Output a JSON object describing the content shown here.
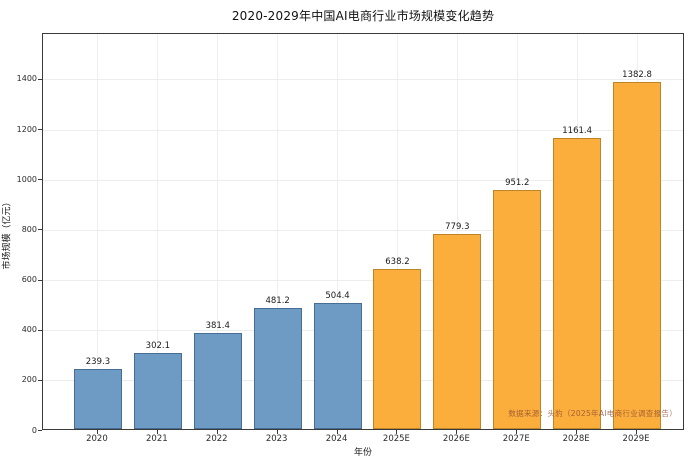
{
  "chart_data": {
    "type": "bar",
    "title": "2020-2029年中国AI电商行业市场规模变化趋势",
    "xlabel": "年份",
    "ylabel": "市场规模（亿元）",
    "categories": [
      "2020",
      "2021",
      "2022",
      "2023",
      "2024",
      "2025E",
      "2026E",
      "2027E",
      "2028E",
      "2029E"
    ],
    "values": [
      239.3,
      302.1,
      381.4,
      481.2,
      504.4,
      638.2,
      779.3,
      951.2,
      1161.4,
      1382.8
    ],
    "yticks": [
      0,
      200,
      400,
      600,
      800,
      1000,
      1200,
      1400
    ],
    "ylim": [
      0,
      1583
    ],
    "grid": true,
    "legend_position": "none",
    "bar_style": {
      "historical": {
        "count": 5,
        "fill": "#6d9bc3",
        "edge": "#466d93"
      },
      "forecast": {
        "count": 5,
        "fill": "#fbae3c",
        "edge": "#bd8527"
      }
    }
  },
  "watermark": {
    "text": "数据来源：头豹（2025年AI电商行业调查报告）",
    "color": "#8d4a32"
  }
}
